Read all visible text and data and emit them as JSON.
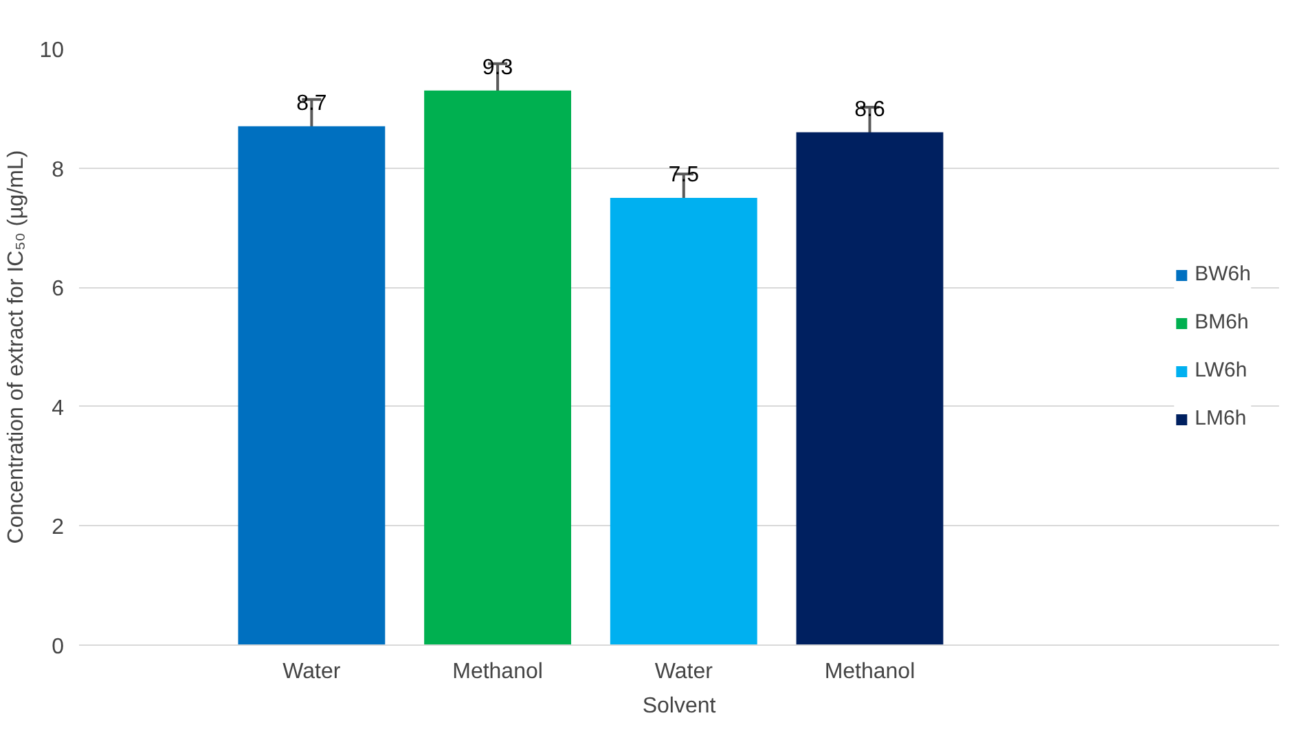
{
  "chart_data": {
    "type": "bar",
    "xlabel": "Solvent",
    "ylabel": "Concentration of extract for IC₅₀ (µg/mL)",
    "categories": [
      "Water",
      "Methanol",
      "Water",
      "Methanol"
    ],
    "series": [
      {
        "name": "BW6h",
        "color": "#0070c0",
        "values": [
          8.7,
          null,
          null,
          null
        ],
        "errors": [
          0.45,
          null,
          null,
          null
        ]
      },
      {
        "name": "BM6h",
        "color": "#00b050",
        "values": [
          null,
          9.3,
          null,
          null
        ],
        "errors": [
          null,
          0.45,
          null,
          null
        ]
      },
      {
        "name": "LW6h",
        "color": "#00b0f0",
        "values": [
          null,
          null,
          7.5,
          null
        ],
        "errors": [
          null,
          null,
          0.4,
          null
        ]
      },
      {
        "name": "LM6h",
        "color": "#002060",
        "values": [
          null,
          null,
          null,
          8.6
        ],
        "errors": [
          null,
          null,
          null,
          0.42
        ]
      }
    ],
    "ylim": [
      0,
      10
    ],
    "yticks": [
      0,
      2,
      4,
      6,
      8,
      10
    ],
    "grid": "y",
    "legend": "right",
    "data_labels": true
  }
}
